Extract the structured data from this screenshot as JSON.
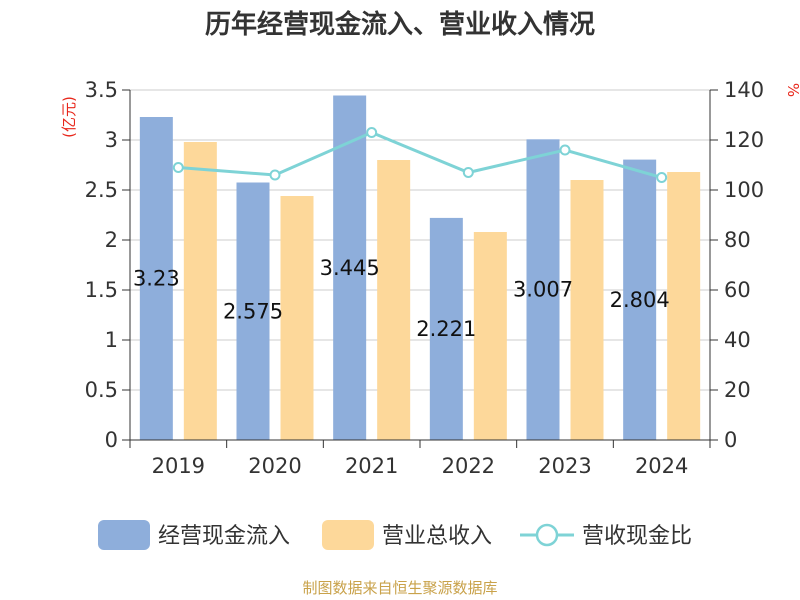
{
  "chart_data": {
    "type": "bar",
    "title": "历年经营现金流入、营业收入情况",
    "y_unit_left": "(亿元)",
    "y_unit_right": "%",
    "categories": [
      "2019",
      "2020",
      "2021",
      "2022",
      "2023",
      "2024"
    ],
    "ylim_left": [
      0,
      3.5
    ],
    "yticks_left": [
      "0",
      "0.5",
      "1",
      "1.5",
      "2",
      "2.5",
      "3",
      "3.5"
    ],
    "ylim_right": [
      0,
      140
    ],
    "yticks_right": [
      "0",
      "20",
      "40",
      "60",
      "80",
      "100",
      "120",
      "140"
    ],
    "grid": true,
    "legend_position": "bottom",
    "series": [
      {
        "name": "经营现金流入",
        "type": "bar",
        "axis": "left",
        "color": "#8eaedb",
        "values": [
          3.23,
          2.575,
          3.445,
          2.221,
          3.007,
          2.804
        ],
        "labels": [
          "3.23",
          "2.575",
          "3.445",
          "2.221",
          "3.007",
          "2.804"
        ]
      },
      {
        "name": "营业总收入",
        "type": "bar",
        "axis": "left",
        "color": "#fdd89a",
        "values": [
          2.98,
          2.44,
          2.8,
          2.08,
          2.6,
          2.68
        ]
      },
      {
        "name": "营收现金比",
        "type": "line",
        "axis": "right",
        "color": "#7ed3d6",
        "values": [
          109,
          106,
          123,
          107,
          116,
          105
        ]
      }
    ]
  },
  "source_text": "制图数据来自恒生聚源数据库"
}
